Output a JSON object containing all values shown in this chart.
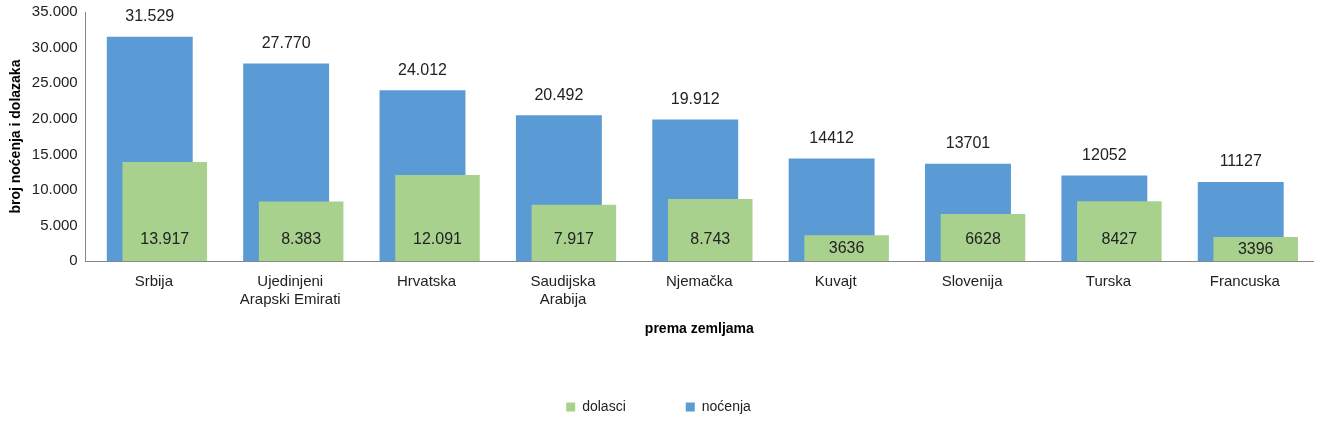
{
  "chart_data": {
    "type": "bar",
    "xlabel": "prema zemljama",
    "ylabel": "broj noćenja i dolazaka",
    "categories": [
      "Srbija",
      "Ujedinjeni Arapski Emirati",
      "Hrvatska",
      "Saudijska Arabija",
      "Njemačka",
      "Kuvajt",
      "Slovenija",
      "Turska",
      "Francuska"
    ],
    "series": [
      {
        "name": "noćenja",
        "color": "#5b9bd5",
        "values": [
          31529,
          27770,
          24012,
          20492,
          19912,
          14412,
          13701,
          12052,
          11127
        ],
        "value_labels": [
          "31.529",
          "27.770",
          "24.012",
          "20.492",
          "19.912",
          "14412",
          "13701",
          "12052",
          "11127"
        ]
      },
      {
        "name": "dolasci",
        "color": "#a9d18e",
        "values": [
          13917,
          8383,
          12091,
          7917,
          8743,
          3636,
          6628,
          8427,
          3396
        ],
        "value_labels": [
          "13.917",
          "8.383",
          "12.091",
          "7.917",
          "8.743",
          "3636",
          "6628",
          "8427",
          "3396"
        ]
      }
    ],
    "ylim": [
      0,
      35000
    ],
    "yticks": [
      {
        "value": 0,
        "label": "0"
      },
      {
        "value": 5000,
        "label": "5.000"
      },
      {
        "value": 10000,
        "label": "10.000"
      },
      {
        "value": 15000,
        "label": "15.000"
      },
      {
        "value": 20000,
        "label": "20.000"
      },
      {
        "value": 25000,
        "label": "25.000"
      },
      {
        "value": 30000,
        "label": "30.000"
      },
      {
        "value": 35000,
        "label": "35.000"
      }
    ],
    "grid": false,
    "legend": "bottom"
  }
}
